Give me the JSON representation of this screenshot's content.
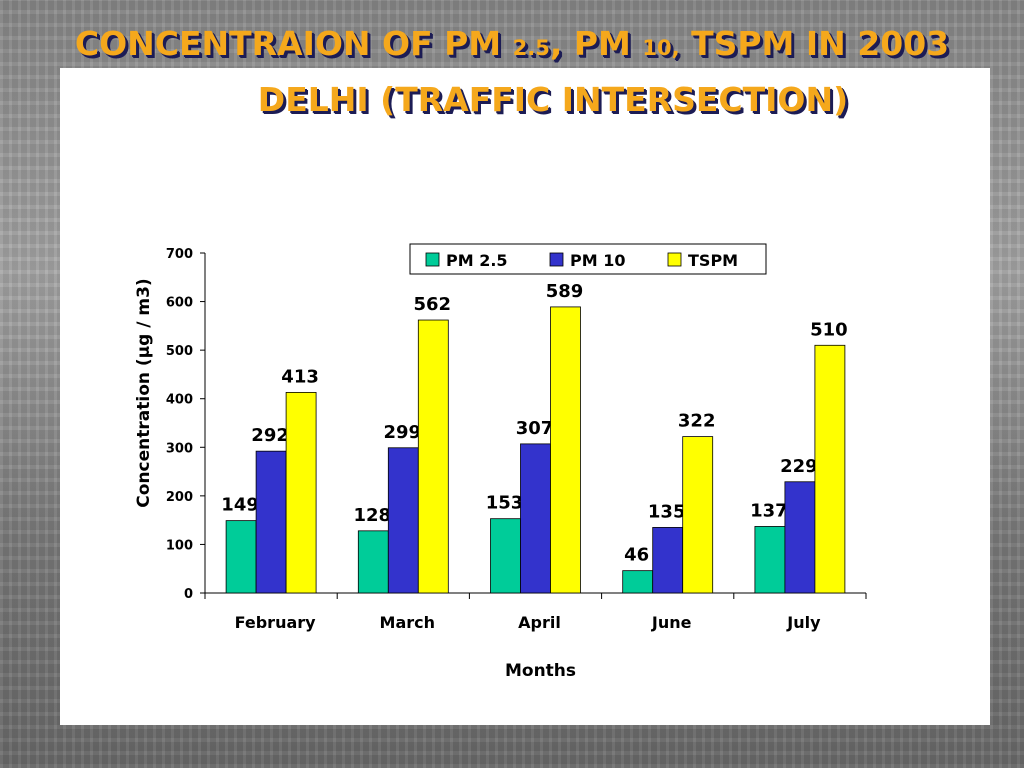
{
  "slide": {
    "title_line1_part1": "CONCENTRAION OF PM",
    "title_line1_sub1": "2.5",
    "title_line1_part2": ", PM",
    "title_line1_sub2": "10,",
    "title_line1_part3": " TSPM IN 2003",
    "title_line2": "DELHI (TRAFFIC INTERSECTION)"
  },
  "chart_data": {
    "type": "bar",
    "categories": [
      "February",
      "March",
      "April",
      "June",
      "July"
    ],
    "series": [
      {
        "name": "PM 2.5",
        "color": "#00cc99",
        "values": [
          149,
          128,
          153,
          46,
          137
        ]
      },
      {
        "name": "PM 10",
        "color": "#3333cc",
        "values": [
          292,
          299,
          307,
          135,
          229
        ]
      },
      {
        "name": "TSPM",
        "color": "#ffff00",
        "values": [
          413,
          562,
          589,
          322,
          510
        ]
      }
    ],
    "title": "",
    "xlabel": "Months",
    "ylabel": "Concentration (µg / m3)",
    "ylim": [
      0,
      700
    ],
    "yticks": [
      0,
      100,
      200,
      300,
      400,
      500,
      600,
      700
    ],
    "grid": false,
    "legend": "top-right",
    "data_labels": true
  }
}
